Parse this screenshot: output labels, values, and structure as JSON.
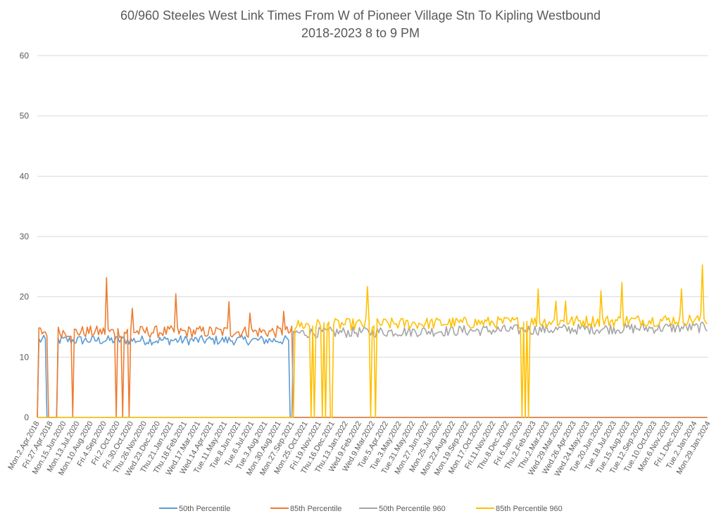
{
  "chart_data": {
    "type": "line",
    "title": "60/960 Steeles West Link Times From W of Pioneer Village Stn To Kipling Westbound",
    "subtitle": "2018-2023 8 to 9 PM",
    "xlabel": "",
    "ylabel": "",
    "ylim": [
      0,
      60
    ],
    "yticks": [
      0,
      10,
      20,
      30,
      40,
      50,
      60
    ],
    "grid": true,
    "legend_position": "bottom",
    "x_tick_labels": [
      "Mon.2.Apr.2018",
      "Fri.27.Apr.2018",
      "Mon.15.Jun.2020",
      "Mon.13.Jul.2020",
      "Mon.10.Aug.2020",
      "Fri.4.Sep.2020",
      "Fri.2.Oct.2020",
      "Fri.30.Oct.2020",
      "Thu.26.Nov.2020",
      "Wed.23.Dec.2020",
      "Thu.21.Jan.2021",
      "Thu.18.Feb.2021",
      "Wed.17.Mar.2021",
      "Wed.14.Apr.2021",
      "Tue.11.May.2021",
      "Tue.8.Jun.2021",
      "Tue.6.Jul.2021",
      "Tue.3.Aug.2021",
      "Mon.30.Aug.2021",
      "Mon.27.Sep.2021",
      "Mon.25.Oct.2021",
      "Fri.19.Nov.2021",
      "Thu.16.Dec.2021",
      "Thu.13.Jan.2022",
      "Wed.9.Feb.2022",
      "Wed.9.Mar.2022",
      "Tue.5.Apr.2022",
      "Tue.3.May.2022",
      "Tue.31.May.2022",
      "Mon.27.Jun.2022",
      "Mon.25.Jul.2022",
      "Mon.22.Aug.2022",
      "Mon.19.Sep.2022",
      "Mon.17.Oct.2022",
      "Fri.11.Nov.2022",
      "Thu.8.Dec.2022",
      "Fri.6.Jan.2023",
      "Thu.2.Feb.2023",
      "Thu.2.Mar.2023",
      "Wed.29.Mar.2023",
      "Wed.26.Apr.2023",
      "Wed.24.May.2023",
      "Tue.20.Jun.2023",
      "Tue.18.Jul.2023",
      "Tue.15.Aug.2023",
      "Tue.12.Sep.2023",
      "Tue.10.Oct.2023",
      "Mon.6.Nov.2023",
      "Fri.1.Dec.2023",
      "Tue.2.Jan.2024",
      "Mon.29.Jan.2024"
    ],
    "series": [
      {
        "name": "50th Percentile",
        "color": "#5b9bd5",
        "baseline": 12.8,
        "noise": 0.8,
        "segments": [
          [
            0,
            0.7,
            0.5
          ],
          [
            1.5,
            18.8,
            0
          ]
        ],
        "spikes": []
      },
      {
        "name": "85th Percentile",
        "color": "#ed7d31",
        "baseline": 14.2,
        "noise": 1.0,
        "segments": [
          [
            0,
            0.8,
            0.5
          ],
          [
            1.5,
            19.0,
            0
          ]
        ],
        "spikes": [
          [
            5.2,
            23.2
          ],
          [
            7.1,
            18.1
          ],
          [
            10.3,
            20.5
          ],
          [
            14.3,
            19.2
          ],
          [
            15.8,
            17.3
          ],
          [
            18.3,
            17.6
          ]
        ],
        "drops": [
          2.6,
          5.9,
          6.4,
          6.8,
          24.2,
          24.4,
          24.6,
          24.8,
          25.0,
          25.3,
          25.5,
          35.3,
          36.8,
          37.0,
          37.2,
          37.4,
          37.6,
          37.8,
          38.1,
          48.6
        ]
      },
      {
        "name": "50th Percentile 960",
        "color": "#a5a5a5",
        "baseline": 14.0,
        "noise": 0.9,
        "segments": [
          [
            19.0,
            50.0,
            0
          ]
        ],
        "spikes": []
      },
      {
        "name": "85th Percentile 960",
        "color": "#ffc000",
        "baseline": 15.3,
        "noise": 1.0,
        "segments": [
          [
            19.0,
            50.0,
            0
          ]
        ],
        "spikes": [
          [
            24.6,
            21.7
          ],
          [
            37.3,
            21.3
          ],
          [
            42.0,
            21.0
          ],
          [
            43.5,
            22.4
          ],
          [
            48.0,
            21.3
          ],
          [
            49.5,
            25.3
          ],
          [
            39.4,
            19.3
          ],
          [
            38.6,
            19.3
          ]
        ],
        "drops": [
          19.1,
          20.4,
          20.6,
          21.2,
          21.5,
          21.8,
          22.0,
          24.9,
          25.2,
          36.1,
          36.4,
          36.6
        ]
      }
    ]
  }
}
